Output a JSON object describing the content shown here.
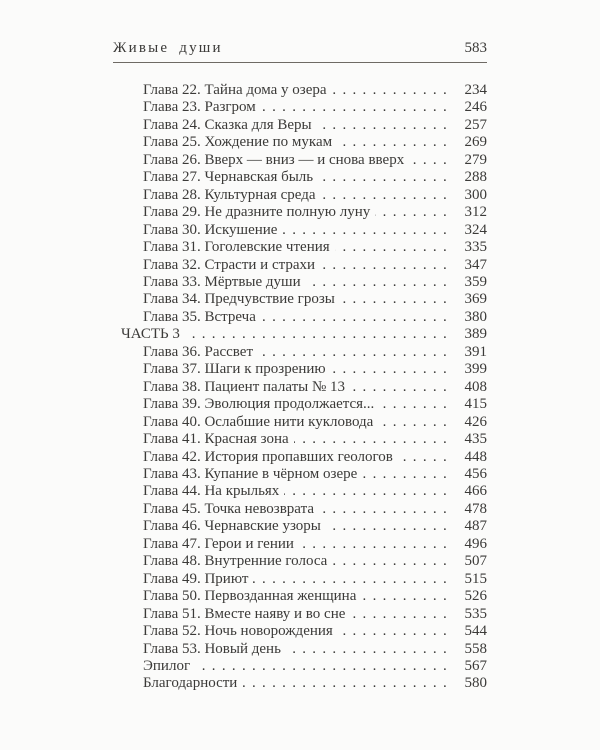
{
  "header": {
    "running_title": "Живые души",
    "page_number": "583"
  },
  "toc": {
    "entries": [
      {
        "label": "Глава 22. Тайна дома у озера",
        "page": "234",
        "indent": 1
      },
      {
        "label": "Глава 23. Разгром",
        "page": "246",
        "indent": 1
      },
      {
        "label": "Глава 24. Сказка для Веры",
        "page": "257",
        "indent": 1
      },
      {
        "label": "Глава 25. Хождение по мукам",
        "page": "269",
        "indent": 1
      },
      {
        "label": "Глава 26. Вверх — вниз — и снова вверх",
        "page": "279",
        "indent": 1
      },
      {
        "label": "Глава 27. Чернавская быль",
        "page": "288",
        "indent": 1
      },
      {
        "label": "Глава 28. Культурная среда",
        "page": "300",
        "indent": 1
      },
      {
        "label": "Глава 29. Не дразните полную луну",
        "page": "312",
        "indent": 1
      },
      {
        "label": "Глава 30. Искушение",
        "page": "324",
        "indent": 1
      },
      {
        "label": "Глава 31. Гоголевские чтения",
        "page": "335",
        "indent": 1
      },
      {
        "label": "Глава 32. Страсти и страхи",
        "page": "347",
        "indent": 1
      },
      {
        "label": "Глава 33. Мёртвые души",
        "page": "359",
        "indent": 1
      },
      {
        "label": "Глава 34. Предчувствие грозы",
        "page": "369",
        "indent": 1
      },
      {
        "label": "Глава 35. Встреча",
        "page": "380",
        "indent": 1
      },
      {
        "label": "ЧАСТЬ 3",
        "page": "389",
        "indent": 0
      },
      {
        "label": "Глава 36. Рассвет",
        "page": "391",
        "indent": 1
      },
      {
        "label": "Глава 37. Шаги к прозрению",
        "page": "399",
        "indent": 1
      },
      {
        "label": "Глава 38. Пациент палаты № 13",
        "page": "408",
        "indent": 1
      },
      {
        "label": "Глава 39. Эволюция продолжается...",
        "page": "415",
        "indent": 1
      },
      {
        "label": "Глава 40. Ослабшие нити кукловода",
        "page": "426",
        "indent": 1
      },
      {
        "label": "Глава 41. Красная зона",
        "page": "435",
        "indent": 1
      },
      {
        "label": "Глава 42. История пропавших геологов",
        "page": "448",
        "indent": 1
      },
      {
        "label": "Глава 43. Купание в чёрном озере",
        "page": "456",
        "indent": 1
      },
      {
        "label": "Глава 44. На крыльях",
        "page": "466",
        "indent": 1
      },
      {
        "label": "Глава 45. Точка невозврата",
        "page": "478",
        "indent": 1
      },
      {
        "label": "Глава 46. Чернавские узоры",
        "page": "487",
        "indent": 1
      },
      {
        "label": "Глава 47. Герои и гении",
        "page": "496",
        "indent": 1
      },
      {
        "label": "Глава 48. Внутренние голоса",
        "page": "507",
        "indent": 1
      },
      {
        "label": "Глава 49. Приют",
        "page": "515",
        "indent": 1
      },
      {
        "label": "Глава 50. Первозданная женщина",
        "page": "526",
        "indent": 1
      },
      {
        "label": "Глава 51. Вместе наяву и во сне",
        "page": "535",
        "indent": 1
      },
      {
        "label": "Глава 52. Ночь новорождения",
        "page": "544",
        "indent": 1
      },
      {
        "label": "Глава 53. Новый день",
        "page": "558",
        "indent": 1
      },
      {
        "label": "Эпилог",
        "page": "567",
        "indent": 1
      },
      {
        "label": "Благодарности",
        "page": "580",
        "indent": 1
      }
    ]
  },
  "colors": {
    "text": "#3b3a38",
    "rule": "#6e6a64",
    "background": "#fbfbfa"
  }
}
